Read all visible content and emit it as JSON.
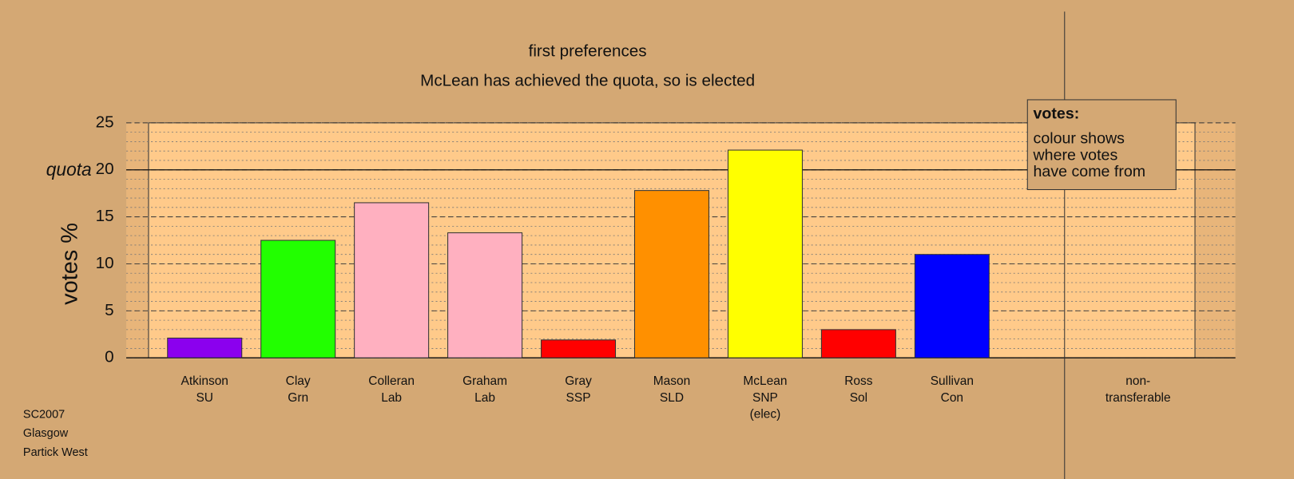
{
  "chart_data": {
    "type": "bar",
    "title": "first preferences",
    "subtitle": "McLean has achieved the quota, so is elected",
    "y_label": "votes %",
    "categories": [
      [
        "Atkinson",
        "SU"
      ],
      [
        "Clay",
        "Grn"
      ],
      [
        "Colleran",
        "Lab"
      ],
      [
        "Graham",
        "Lab"
      ],
      [
        "Gray",
        "SSP"
      ],
      [
        "Mason",
        "SLD"
      ],
      [
        "McLean",
        "SNP",
        "(elec)"
      ],
      [
        "Ross",
        "Sol"
      ],
      [
        "Sullivan",
        "Con"
      ],
      [
        "non-",
        "transferable"
      ]
    ],
    "values": [
      2.1,
      12.5,
      16.5,
      13.3,
      1.9,
      17.8,
      22.1,
      3.0,
      11.0,
      null
    ],
    "colors": [
      "#8b00ee",
      "#22ff00",
      "#ffb0c0",
      "#ffb0c0",
      "#ff0000",
      "#ff9000",
      "#ffff00",
      "#ff0000",
      "#0000ff",
      "#888888"
    ],
    "ylim": [
      0,
      25
    ],
    "yticks": [
      0,
      5,
      10,
      15,
      20,
      25
    ],
    "quota": {
      "value": 20,
      "label": "quota"
    },
    "grid": true,
    "minor_grid": true,
    "legend": {
      "title": "votes:",
      "lines": [
        "colour shows",
        "where votes",
        "have come from"
      ]
    },
    "footer": [
      "SC2007",
      "Glasgow",
      "Partick West"
    ]
  }
}
